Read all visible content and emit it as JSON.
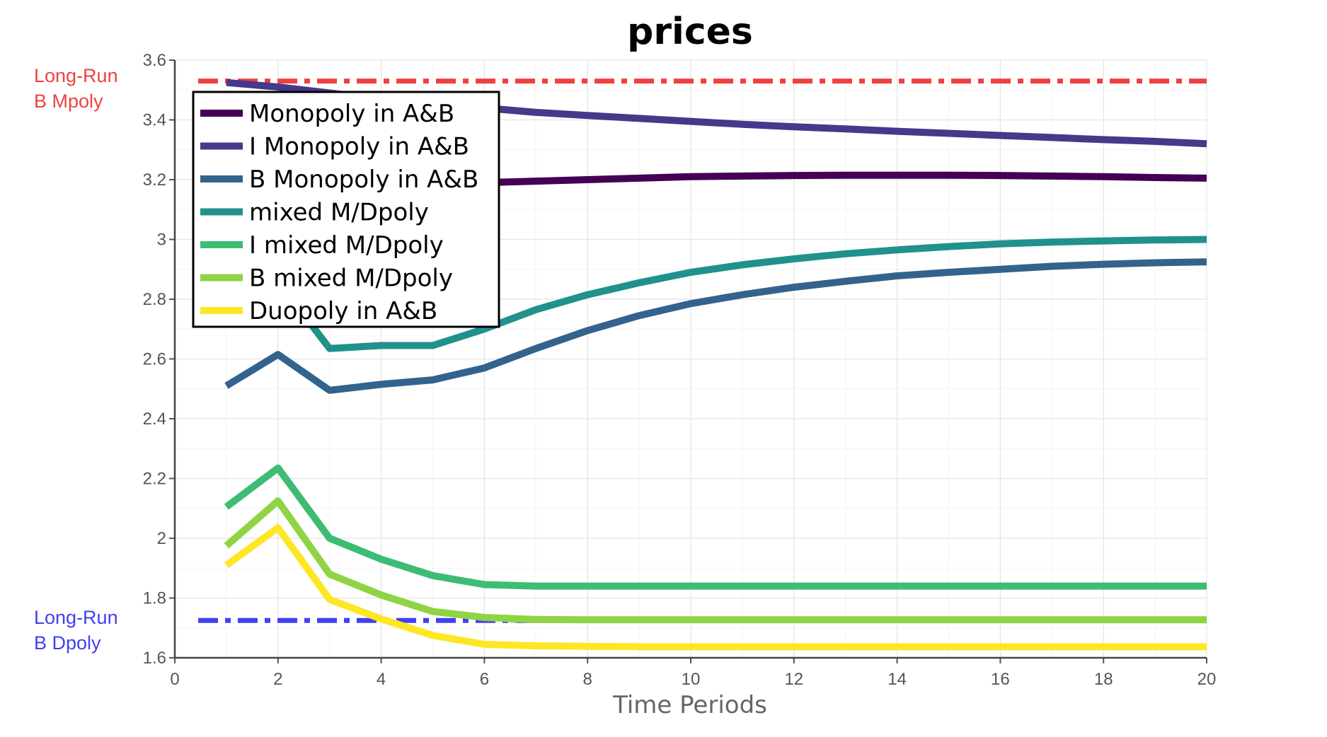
{
  "chart_data": {
    "type": "line",
    "title": "prices",
    "xlabel": "Time Periods",
    "ylabel": "",
    "xlim": [
      0,
      20
    ],
    "ylim": [
      1.6,
      3.6
    ],
    "x_ticks": [
      "0",
      "2",
      "4",
      "6",
      "8",
      "10",
      "12",
      "14",
      "16",
      "18",
      "20"
    ],
    "y_ticks": [
      "1.6",
      "1.8",
      "2",
      "2.2",
      "2.4",
      "2.6",
      "2.8",
      "3",
      "3.2",
      "3.4",
      "3.6"
    ],
    "grid": true,
    "legend_position": "top-left",
    "x": [
      1,
      2,
      3,
      4,
      5,
      6,
      7,
      8,
      9,
      10,
      11,
      12,
      13,
      14,
      15,
      16,
      17,
      18,
      19,
      20
    ],
    "series": [
      {
        "name": "Monopoly in A&B",
        "color": "#440154",
        "values": [
          3.15,
          3.18,
          3.19,
          3.19,
          3.19,
          3.19,
          3.195,
          3.2,
          3.205,
          3.21,
          3.212,
          3.214,
          3.215,
          3.215,
          3.215,
          3.214,
          3.212,
          3.21,
          3.207,
          3.205
        ]
      },
      {
        "name": "I Monopoly in A&B",
        "color": "#46388a",
        "values": [
          3.525,
          3.51,
          3.49,
          3.47,
          3.455,
          3.44,
          3.425,
          3.415,
          3.405,
          3.395,
          3.385,
          3.377,
          3.37,
          3.362,
          3.355,
          3.348,
          3.341,
          3.334,
          3.328,
          3.32
        ]
      },
      {
        "name": "B Monopoly in A&B",
        "color": "#33638d",
        "values": [
          2.51,
          2.615,
          2.495,
          2.515,
          2.53,
          2.57,
          2.635,
          2.695,
          2.745,
          2.785,
          2.815,
          2.84,
          2.86,
          2.878,
          2.89,
          2.9,
          2.91,
          2.917,
          2.922,
          2.925
        ]
      },
      {
        "name": "mixed M/Dpoly",
        "color": "#21918c",
        "values": [
          2.76,
          2.86,
          2.635,
          2.645,
          2.645,
          2.7,
          2.765,
          2.815,
          2.855,
          2.89,
          2.915,
          2.935,
          2.952,
          2.965,
          2.976,
          2.985,
          2.991,
          2.995,
          2.998,
          3.0
        ]
      },
      {
        "name": "I mixed M/Dpoly",
        "color": "#3dbc74",
        "values": [
          2.105,
          2.235,
          2.0,
          1.93,
          1.875,
          1.845,
          1.84,
          1.84,
          1.84,
          1.84,
          1.84,
          1.84,
          1.84,
          1.84,
          1.84,
          1.84,
          1.84,
          1.84,
          1.84,
          1.84
        ]
      },
      {
        "name": "B mixed M/Dpoly",
        "color": "#8ed444",
        "values": [
          1.975,
          2.125,
          1.88,
          1.81,
          1.755,
          1.735,
          1.728,
          1.727,
          1.727,
          1.727,
          1.727,
          1.727,
          1.727,
          1.727,
          1.727,
          1.727,
          1.727,
          1.727,
          1.727,
          1.727
        ]
      },
      {
        "name": "Duopoly in A&B",
        "color": "#fde725",
        "values": [
          1.91,
          2.035,
          1.795,
          1.73,
          1.675,
          1.645,
          1.64,
          1.638,
          1.637,
          1.637,
          1.637,
          1.637,
          1.637,
          1.637,
          1.637,
          1.637,
          1.637,
          1.637,
          1.637,
          1.637
        ]
      }
    ],
    "reference_lines": [
      {
        "label_lines": [
          "Long-Run",
          "B Mpoly"
        ],
        "y": 3.53,
        "color": "#f04040"
      },
      {
        "label_lines": [
          "Long-Run",
          "B Dpoly"
        ],
        "y": 1.725,
        "color": "#4040f0"
      }
    ]
  }
}
